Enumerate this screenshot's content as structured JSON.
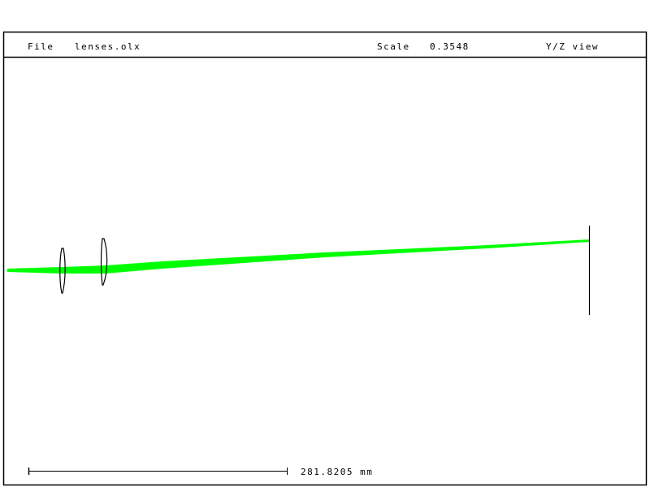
{
  "header": {
    "file_label": "File",
    "file_name": "lenses.olx",
    "scale_label": "Scale",
    "scale_value": "0.3548",
    "view": "Y/Z view"
  },
  "scale_bar": {
    "length_label": "281.8205 mm"
  },
  "colors": {
    "beam": "#00ff00",
    "lines": "#000000",
    "background": "#ffffff"
  },
  "elements": [
    "lens-1",
    "lens-2",
    "detector-plane"
  ]
}
